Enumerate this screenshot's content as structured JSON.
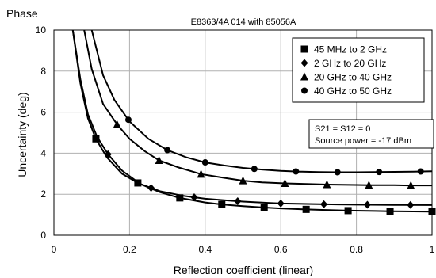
{
  "chart_data": {
    "type": "line",
    "title": "E8363/4A  014 with 85056A",
    "corner_label": "Phase",
    "xlabel": "Reflection coefficient (linear)",
    "ylabel": "Uncertainty (deg)",
    "xlim": [
      0,
      1
    ],
    "ylim": [
      0,
      10
    ],
    "x_ticks": [
      "0",
      "0.2",
      "0.4",
      "0.6",
      "0.8",
      "1"
    ],
    "y_ticks": [
      "0",
      "2",
      "4",
      "6",
      "8",
      "10"
    ],
    "grid": true,
    "legend_position": "top-right",
    "annotation_lines": [
      "S21 = S12 = 0",
      "Source power = -17 dBm"
    ],
    "series": [
      {
        "name": "45 MHz to 2 GHz",
        "marker": "square",
        "x": [
          0.05,
          0.07,
          0.09,
          0.111,
          0.14,
          0.18,
          0.222,
          0.28,
          0.333,
          0.4,
          0.444,
          0.5,
          0.556,
          0.6,
          0.667,
          0.7,
          0.778,
          0.85,
          0.889,
          0.95,
          1.0
        ],
        "y": [
          10.0,
          7.4,
          5.7,
          4.7,
          3.8,
          3.0,
          2.55,
          2.1,
          1.82,
          1.6,
          1.5,
          1.42,
          1.35,
          1.31,
          1.26,
          1.24,
          1.2,
          1.18,
          1.17,
          1.16,
          1.15
        ],
        "markers_at": [
          0.111,
          0.222,
          0.333,
          0.444,
          0.556,
          0.667,
          0.778,
          0.889,
          1.0
        ]
      },
      {
        "name": "2 GHz to 20 GHz",
        "marker": "diamond",
        "x": [
          0.05,
          0.07,
          0.09,
          0.114,
          0.143,
          0.18,
          0.229,
          0.28,
          0.343,
          0.4,
          0.457,
          0.5,
          0.571,
          0.6,
          0.686,
          0.75,
          0.8,
          0.9,
          0.914,
          1.0
        ],
        "y": [
          10.0,
          7.6,
          5.9,
          4.8,
          3.95,
          3.15,
          2.5,
          2.15,
          1.92,
          1.78,
          1.7,
          1.64,
          1.57,
          1.55,
          1.52,
          1.5,
          1.49,
          1.48,
          1.48,
          1.47
        ],
        "markers_at": [
          0.143,
          0.257,
          0.371,
          0.486,
          0.6,
          0.714,
          0.829,
          0.943
        ]
      },
      {
        "name": "20 GHz to 40 GHz",
        "marker": "triangle",
        "x": [
          0.08,
          0.1,
          0.13,
          0.167,
          0.2,
          0.24,
          0.278,
          0.33,
          0.389,
          0.45,
          0.5,
          0.55,
          0.611,
          0.667,
          0.722,
          0.8,
          0.833,
          0.9,
          0.944,
          1.0
        ],
        "y": [
          10.0,
          8.1,
          6.4,
          5.4,
          4.7,
          4.1,
          3.65,
          3.3,
          2.98,
          2.8,
          2.66,
          2.58,
          2.53,
          2.5,
          2.47,
          2.45,
          2.44,
          2.44,
          2.43,
          2.43
        ],
        "markers_at": [
          0.167,
          0.278,
          0.389,
          0.5,
          0.611,
          0.722,
          0.833,
          0.944
        ]
      },
      {
        "name": "40 GHz to 50 GHz",
        "marker": "circle",
        "x": [
          0.1,
          0.13,
          0.16,
          0.2,
          0.25,
          0.3,
          0.35,
          0.4,
          0.45,
          0.5,
          0.55,
          0.6,
          0.65,
          0.7,
          0.75,
          0.8,
          0.85,
          0.9,
          0.95,
          1.0
        ],
        "y": [
          10.0,
          7.8,
          6.6,
          5.55,
          4.7,
          4.15,
          3.8,
          3.55,
          3.4,
          3.28,
          3.2,
          3.14,
          3.1,
          3.08,
          3.07,
          3.07,
          3.08,
          3.09,
          3.1,
          3.12
        ],
        "markers_at": [
          0.197,
          0.3,
          0.4,
          0.53,
          0.64,
          0.75,
          0.86,
          0.97
        ]
      }
    ]
  }
}
